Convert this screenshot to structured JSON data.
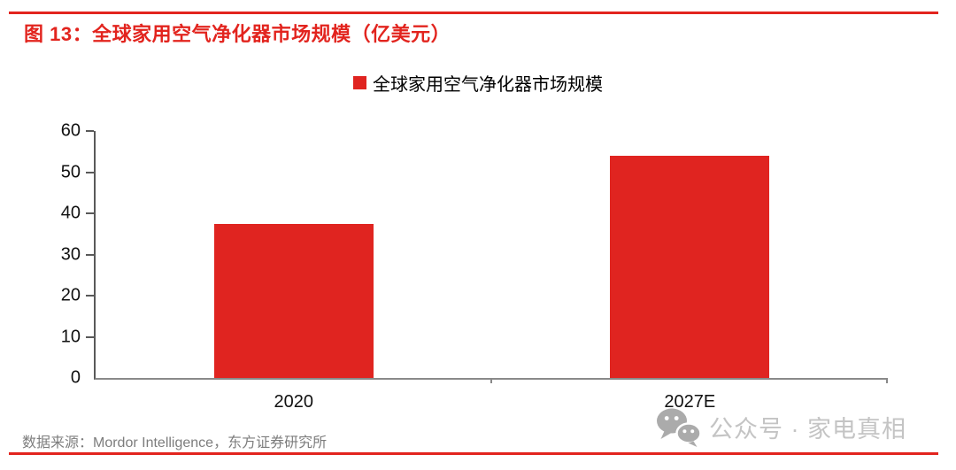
{
  "header": {
    "figure_title": "图 13：全球家用空气净化器市场规模（亿美元）"
  },
  "legend": {
    "label": "全球家用空气净化器市场规模"
  },
  "chart_data": {
    "type": "bar",
    "title": "全球家用空气净化器市场规模（亿美元）",
    "legend": [
      "全球家用空气净化器市场规模"
    ],
    "legend_position": "top-center",
    "categories": [
      "2020",
      "2027E"
    ],
    "values": [
      37.4,
      53.9
    ],
    "xlabel": "",
    "ylabel": "",
    "ylim": [
      0,
      60
    ],
    "ytick_step": 10,
    "ytick_labels": [
      "0",
      "10",
      "20",
      "30",
      "40",
      "50",
      "60"
    ],
    "grid": false,
    "bar_color": "#e02420"
  },
  "footer": {
    "source": "数据来源：Mordor Intelligence，东方证券研究所",
    "watermark": "公众号 · 家电真相",
    "watermark_icon": "wechat-icon"
  },
  "colors": {
    "accent_red": "#e2241e",
    "bar_red": "#e02420",
    "axis_dark": "#595959",
    "baseline_gray": "#898989",
    "source_gray": "#7d7d7d",
    "watermark_gray": "#c4c4c4",
    "watermark_icon_gray": "#ababab"
  }
}
